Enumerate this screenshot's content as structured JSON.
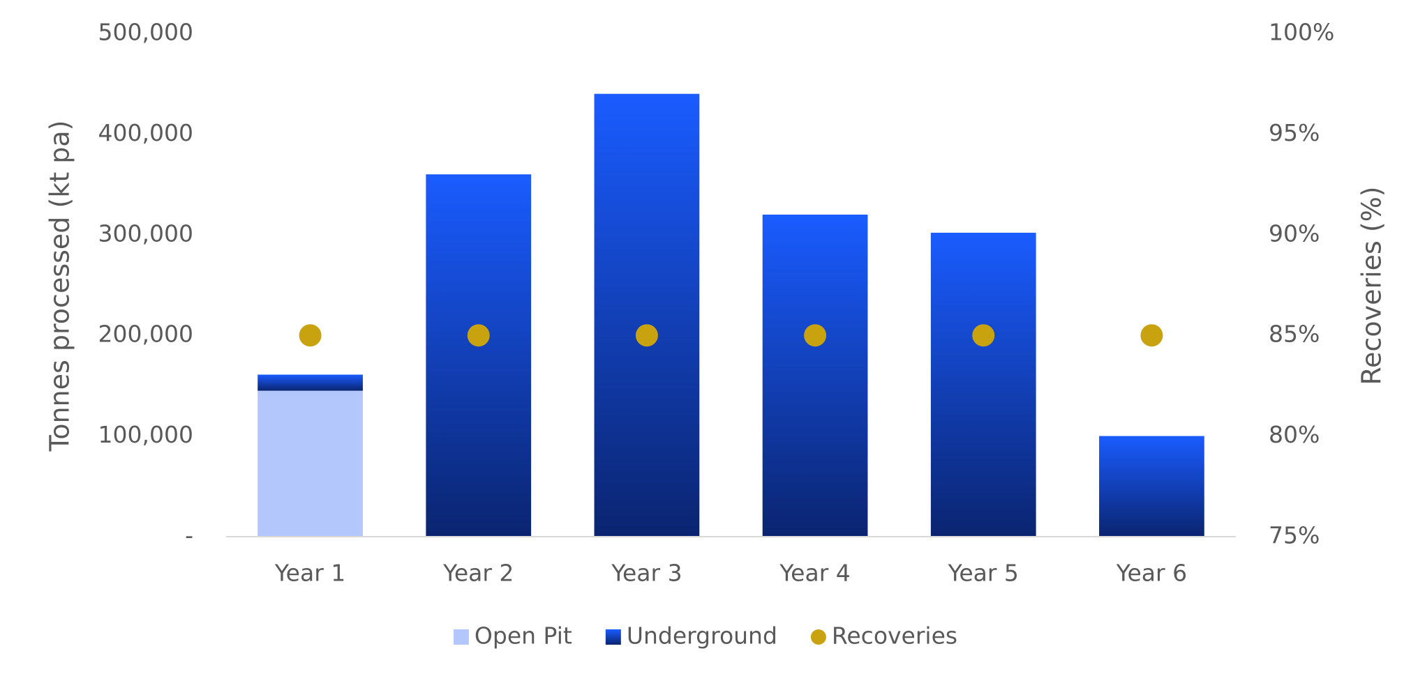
{
  "chart_data": {
    "type": "bar",
    "categories": [
      "Year 1",
      "Year 2",
      "Year 3",
      "Year 4",
      "Year 5",
      "Year 6"
    ],
    "series": [
      {
        "name": "Open Pit",
        "color": "#b4c7fc",
        "values": [
          145000,
          null,
          null,
          null,
          null,
          null
        ]
      },
      {
        "name": "Underground",
        "color": "#1a5cff",
        "values": [
          16000,
          360000,
          440000,
          320000,
          302000,
          100000
        ]
      },
      {
        "name": "Recoveries",
        "color": "#c9a20f",
        "axis": "y2",
        "values": [
          85,
          85,
          85,
          85,
          85,
          85
        ]
      }
    ],
    "ylabel": "Tonnes processed (kt pa)",
    "y2label": "Recoveries (%)",
    "ylim": [
      0,
      500000
    ],
    "yticks": [
      {
        "value": 0,
        "label": "-"
      },
      {
        "value": 100000,
        "label": "100,000"
      },
      {
        "value": 200000,
        "label": "200,000"
      },
      {
        "value": 300000,
        "label": "300,000"
      },
      {
        "value": 400000,
        "label": "400,000"
      },
      {
        "value": 500000,
        "label": "500,000"
      }
    ],
    "y2lim": [
      75,
      100
    ],
    "y2ticks": [
      {
        "value": 75,
        "label": "75%"
      },
      {
        "value": 80,
        "label": "80%"
      },
      {
        "value": 85,
        "label": "85%"
      },
      {
        "value": 90,
        "label": "90%"
      },
      {
        "value": 95,
        "label": "95%"
      },
      {
        "value": 100,
        "label": "100%"
      }
    ],
    "legend": "bottom"
  }
}
